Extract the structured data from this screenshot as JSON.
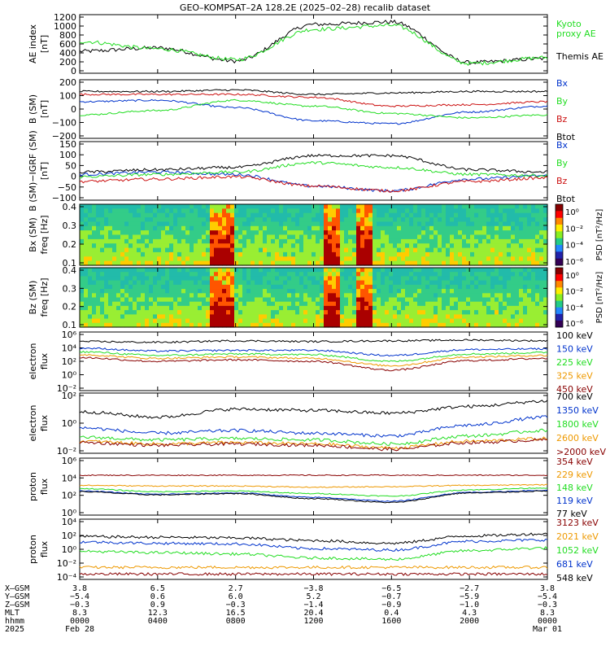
{
  "title": "GEO–KOMPSAT–2A 128.2E (2025–02–28) recalib dataset",
  "colors": {
    "black": "#000000",
    "blue": "#0033cc",
    "green": "#22dd22",
    "red": "#cc1111",
    "orange": "#ee9900",
    "darkred": "#880000",
    "navy": "#1133aa"
  },
  "panels": [
    {
      "id": "ae",
      "ylabel": "AE index",
      "unit": "[nT]",
      "ticks": [
        "1200",
        "1000",
        "800",
        "600",
        "400",
        "200",
        "0"
      ],
      "legend": [
        {
          "text": "Kyoto",
          "color": "green"
        },
        {
          "text": "proxy AE",
          "color": "green"
        },
        {
          "text": "Themis AE",
          "color": "black"
        }
      ]
    },
    {
      "id": "bsm",
      "ylabel": "B (SM)",
      "unit": "[nT]",
      "ticks": [
        "200",
        "100",
        "0",
        "−100",
        "−200"
      ],
      "legend": [
        {
          "text": "Bx",
          "color": "blue"
        },
        {
          "text": "By",
          "color": "green"
        },
        {
          "text": "Bz",
          "color": "red"
        },
        {
          "text": "Btot",
          "color": "black"
        }
      ]
    },
    {
      "id": "bigrf",
      "ylabel": "B (SM)−IGRF (SM)",
      "unit": "[nT]",
      "ticks": [
        "150",
        "100",
        "50",
        "0",
        "−50",
        "−100"
      ],
      "legend": [
        {
          "text": "Bx",
          "color": "blue"
        },
        {
          "text": "By",
          "color": "green"
        },
        {
          "text": "Bz",
          "color": "red"
        },
        {
          "text": "Btot",
          "color": "black"
        }
      ]
    },
    {
      "id": "specx",
      "ylabel": "Bx (SM)",
      "unit": "freq [Hz]",
      "ticks": [
        "0.4",
        "0.3",
        "0.2",
        "0.1"
      ],
      "cbar_label": "PSD [nT²/Hz]",
      "cbar_ticks": [
        "10⁰",
        "10⁻²",
        "10⁻⁴",
        "10⁻⁶"
      ]
    },
    {
      "id": "specz",
      "ylabel": "Bz (SM)",
      "unit": "freq [Hz]",
      "ticks": [
        "0.4",
        "0.3",
        "0.2",
        "0.1"
      ],
      "cbar_label": "PSD [nT²/Hz]",
      "cbar_ticks": [
        "10⁰",
        "10⁻²",
        "10⁻⁴",
        "10⁻⁶"
      ]
    },
    {
      "id": "elo",
      "ylabel": "electron",
      "unit": "flux",
      "ticks": [
        "10⁶",
        "10⁴",
        "10²",
        "10⁰",
        "10⁻²"
      ],
      "legend": [
        {
          "text": "100 keV",
          "color": "black"
        },
        {
          "text": "150 keV",
          "color": "blue"
        },
        {
          "text": "225 keV",
          "color": "green"
        },
        {
          "text": "325 keV",
          "color": "orange"
        },
        {
          "text": "450 keV",
          "color": "darkred"
        }
      ]
    },
    {
      "id": "ehi",
      "ylabel": "electron",
      "unit": "flux",
      "ticks": [
        "10²",
        "10⁰",
        "10⁻²"
      ],
      "legend": [
        {
          "text": "700 keV",
          "color": "black"
        },
        {
          "text": "1350 keV",
          "color": "blue"
        },
        {
          "text": "1800 keV",
          "color": "green"
        },
        {
          "text": "2600 keV",
          "color": "orange"
        },
        {
          "text": ">2000 keV",
          "color": "darkred"
        }
      ]
    },
    {
      "id": "plo",
      "ylabel": "proton",
      "unit": "flux",
      "ticks": [
        "10⁶",
        "10⁴",
        "10²",
        "10⁰"
      ],
      "legend": [
        {
          "text": "354 keV",
          "color": "darkred"
        },
        {
          "text": "229 keV",
          "color": "orange"
        },
        {
          "text": "148 keV",
          "color": "green"
        },
        {
          "text": "119 keV",
          "color": "blue"
        },
        {
          "text": "77 keV",
          "color": "black"
        }
      ]
    },
    {
      "id": "phi",
      "ylabel": "proton",
      "unit": "flux",
      "ticks": [
        "10⁴",
        "10²",
        "10⁰",
        "10⁻²",
        "10⁻⁴"
      ],
      "legend": [
        {
          "text": "3123 keV",
          "color": "darkred"
        },
        {
          "text": "2021 keV",
          "color": "orange"
        },
        {
          "text": "1052 keV",
          "color": "green"
        },
        {
          "text": "681 keV",
          "color": "blue"
        },
        {
          "text": "548 keV",
          "color": "black"
        }
      ]
    }
  ],
  "ephemeris": {
    "row_labels": [
      "X–GSM",
      "Y–GSM",
      "Z–GSM",
      "MLT",
      "hhmm",
      "2025"
    ],
    "columns": [
      [
        "3.8",
        "−5.4",
        "−0.3",
        "8.3",
        "0000",
        "Feb 28"
      ],
      [
        "6.5",
        "0.6",
        "0.9",
        "12.3",
        "0400",
        ""
      ],
      [
        "2.7",
        "6.0",
        "−0.3",
        "16.5",
        "0800",
        ""
      ],
      [
        "−3.8",
        "5.2",
        "−1.4",
        "20.4",
        "1200",
        ""
      ],
      [
        "−6.5",
        "−0.7",
        "−0.9",
        "0.4",
        "1600",
        ""
      ],
      [
        "−2.7",
        "−5.9",
        "−1.0",
        "4.3",
        "2000",
        ""
      ],
      [
        "3.8",
        "−5.4",
        "−0.3",
        "8.3",
        "0000",
        "Mar 01"
      ]
    ]
  },
  "chart_data": [
    {
      "type": "line",
      "title": "AE index",
      "ylabel": "AE index [nT]",
      "ylim": [
        0,
        1200
      ],
      "x": [
        "0000",
        "0400",
        "0800",
        "1200",
        "1600",
        "2000",
        "0000"
      ],
      "series": [
        {
          "name": "Themis AE",
          "values": [
            450,
            520,
            250,
            1000,
            1050,
            220,
            300
          ]
        },
        {
          "name": "Kyoto proxy AE",
          "values": [
            650,
            500,
            280,
            900,
            980,
            200,
            320
          ]
        }
      ]
    },
    {
      "type": "line",
      "ylabel": "B (SM) [nT]",
      "ylim": [
        -200,
        200
      ],
      "x": [
        "0000",
        "0400",
        "0800",
        "1200",
        "1600",
        "2000",
        "0000"
      ],
      "series": [
        {
          "name": "Bx",
          "values": [
            50,
            60,
            10,
            -80,
            -100,
            -20,
            20
          ]
        },
        {
          "name": "By",
          "values": [
            -40,
            -10,
            60,
            20,
            -30,
            -60,
            -40
          ]
        },
        {
          "name": "Bz",
          "values": [
            100,
            100,
            100,
            80,
            20,
            30,
            50
          ]
        },
        {
          "name": "Btot",
          "values": [
            120,
            120,
            130,
            100,
            110,
            120,
            120
          ]
        }
      ]
    },
    {
      "type": "line",
      "ylabel": "B (SM)−IGRF (SM) [nT]",
      "ylim": [
        -100,
        150
      ],
      "x": [
        "0000",
        "0400",
        "0800",
        "1200",
        "1600",
        "2000",
        "0000"
      ],
      "series": [
        {
          "name": "Bx",
          "values": [
            10,
            20,
            10,
            -40,
            -60,
            -10,
            5
          ]
        },
        {
          "name": "By",
          "values": [
            0,
            10,
            20,
            60,
            40,
            10,
            5
          ]
        },
        {
          "name": "Bz",
          "values": [
            -20,
            -10,
            0,
            -40,
            -60,
            -20,
            -5
          ]
        },
        {
          "name": "Btot",
          "values": [
            20,
            30,
            40,
            90,
            90,
            30,
            20
          ]
        }
      ]
    },
    {
      "type": "line",
      "ylabel": "electron flux",
      "ylim": [
        -2,
        6
      ],
      "x": [
        "0000",
        "0400",
        "0800",
        "1200",
        "1600",
        "2000",
        "0000"
      ],
      "series": [
        {
          "name": "100 keV",
          "values": [
            4.7,
            4.6,
            4.8,
            4.7,
            4.8,
            4.9,
            4.8
          ]
        },
        {
          "name": "150 keV",
          "values": [
            3.8,
            3.4,
            3.5,
            3.5,
            2.8,
            3.6,
            3.7
          ]
        },
        {
          "name": "225 keV",
          "values": [
            3.3,
            2.8,
            3.0,
            2.9,
            2.0,
            3.0,
            3.2
          ]
        },
        {
          "name": "325 keV",
          "values": [
            2.9,
            2.4,
            2.6,
            2.4,
            1.4,
            2.6,
            2.8
          ]
        },
        {
          "name": "450 keV",
          "values": [
            2.5,
            2.0,
            2.2,
            2.0,
            0.8,
            2.1,
            2.4
          ]
        }
      ]
    },
    {
      "type": "line",
      "ylabel": "electron flux",
      "ylim": [
        -2.5,
        2
      ],
      "x": [
        "0000",
        "0400",
        "0800",
        "1200",
        "1600",
        "2000",
        "0000"
      ],
      "series": [
        {
          "name": "700 keV",
          "values": [
            0.6,
            0.2,
            0.8,
            0.7,
            0.5,
            1.0,
            1.4
          ]
        },
        {
          "name": "1350 keV",
          "values": [
            -0.6,
            -1.0,
            -0.8,
            -1.0,
            -1.2,
            -0.4,
            0.2
          ]
        },
        {
          "name": "1800 keV",
          "values": [
            -1.3,
            -1.5,
            -1.4,
            -1.5,
            -1.8,
            -1.2,
            -0.8
          ]
        },
        {
          "name": "2600 keV",
          "values": [
            -1.6,
            -1.8,
            -1.7,
            -1.8,
            -2.1,
            -1.6,
            -1.4
          ]
        },
        {
          "name": ">2000 keV",
          "values": [
            -1.7,
            -1.9,
            -1.8,
            -1.9,
            -2.2,
            -1.7,
            -1.5
          ]
        }
      ]
    },
    {
      "type": "line",
      "ylabel": "proton flux",
      "ylim": [
        -1,
        8
      ],
      "x": [
        "0000",
        "0400",
        "0800",
        "1200",
        "1600",
        "2000",
        "0000"
      ],
      "series": [
        {
          "name": "354 keV",
          "values": [
            5.3,
            5.3,
            5.3,
            5.3,
            5.3,
            5.3,
            5.3
          ]
        },
        {
          "name": "229 keV",
          "values": [
            3.7,
            3.6,
            3.6,
            3.4,
            3.5,
            3.7,
            3.8
          ]
        },
        {
          "name": "148 keV",
          "values": [
            3.2,
            2.7,
            2.8,
            2.4,
            2.0,
            3.0,
            3.3
          ]
        },
        {
          "name": "119 keV",
          "values": [
            2.8,
            2.3,
            2.5,
            1.8,
            1.2,
            2.6,
            2.9
          ]
        },
        {
          "name": "77 keV",
          "values": [
            2.7,
            2.2,
            2.4,
            1.6,
            1.0,
            2.5,
            2.8
          ]
        }
      ]
    },
    {
      "type": "line",
      "ylabel": "proton flux",
      "ylim": [
        -5,
        4
      ],
      "x": [
        "0000",
        "0400",
        "0800",
        "1200",
        "1600",
        "2000",
        "0000"
      ],
      "series": [
        {
          "name": "548 keV",
          "values": [
            1.4,
            1.3,
            1.2,
            0.8,
            0.4,
            1.5,
            1.8
          ]
        },
        {
          "name": "681 keV",
          "values": [
            0.6,
            0.4,
            0.3,
            -0.4,
            -0.6,
            0.7,
            0.9
          ]
        },
        {
          "name": "1052 keV",
          "values": [
            -0.8,
            -1.0,
            -1.2,
            -1.8,
            -2.0,
            -0.7,
            -0.3
          ]
        },
        {
          "name": "2021 keV",
          "values": [
            -3.2,
            -3.2,
            -3.2,
            -3.2,
            -3.2,
            -3.2,
            -3.2
          ]
        },
        {
          "name": "3123 keV",
          "values": [
            -4.2,
            -4.2,
            -4.2,
            -4.2,
            -4.2,
            -4.2,
            -4.2
          ]
        }
      ]
    }
  ]
}
